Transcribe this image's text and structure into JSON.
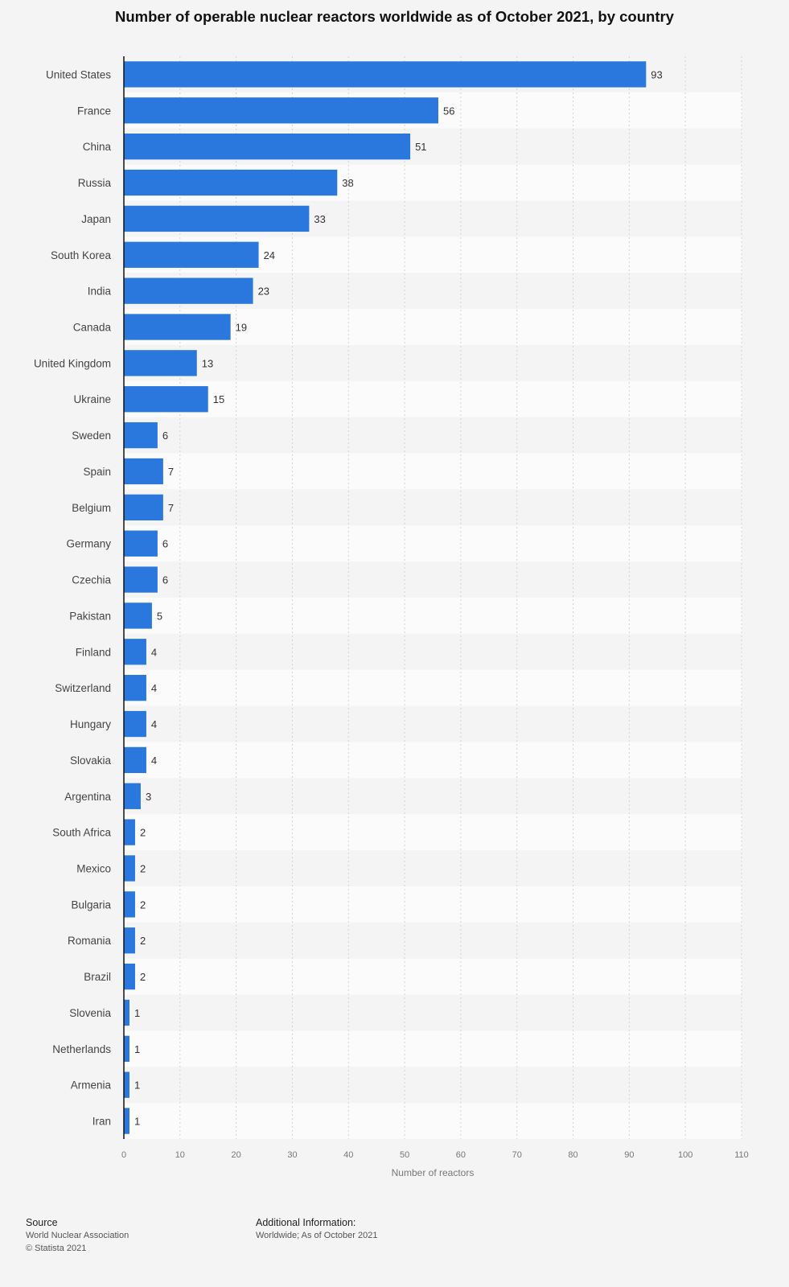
{
  "chart_data": {
    "type": "bar",
    "orientation": "horizontal",
    "title": "Number of operable nuclear reactors worldwide as of October 2021, by country",
    "xlabel": "Number of reactors",
    "ylabel": "",
    "xlim": [
      0,
      110
    ],
    "xticks": [
      0,
      10,
      20,
      30,
      40,
      50,
      60,
      70,
      80,
      90,
      100,
      110
    ],
    "grid": true,
    "bar_color": "#2a78de",
    "categories": [
      "United States",
      "France",
      "China",
      "Russia",
      "Japan",
      "South Korea",
      "India",
      "Canada",
      "United Kingdom",
      "Ukraine",
      "Sweden",
      "Spain",
      "Belgium",
      "Germany",
      "Czechia",
      "Pakistan",
      "Finland",
      "Switzerland",
      "Hungary",
      "Slovakia",
      "Argentina",
      "South Africa",
      "Mexico",
      "Bulgaria",
      "Romania",
      "Brazil",
      "Slovenia",
      "Netherlands",
      "Armenia",
      "Iran"
    ],
    "values": [
      93,
      56,
      51,
      38,
      33,
      24,
      23,
      19,
      13,
      15,
      6,
      7,
      7,
      6,
      6,
      5,
      4,
      4,
      4,
      4,
      3,
      2,
      2,
      2,
      2,
      2,
      1,
      1,
      1,
      1
    ]
  },
  "footer": {
    "source_heading": "Source",
    "source_name": "World Nuclear Association",
    "copyright": "© Statista 2021",
    "additional_heading": "Additional Information:",
    "additional_text": "Worldwide; As of October 2021"
  }
}
